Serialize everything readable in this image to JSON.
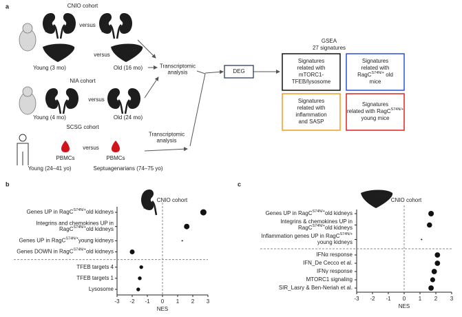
{
  "diagram": {
    "label": "a",
    "cnio": {
      "title": "CNIO cohort",
      "kidney": [
        "Kidney",
        "Kidney"
      ],
      "versus": [
        "versus",
        "versus"
      ],
      "liver": [
        "Liver",
        "Liver"
      ],
      "young": "Young (3 mo)",
      "old": "Old (16 mo)"
    },
    "nia": {
      "title": "NIA cohort",
      "kidney": "Kidney",
      "versus": "versus",
      "young": "Young (4 mo)",
      "old": "Old (24 mo)"
    },
    "scsg": {
      "title": "SCSG cohort",
      "pbmcs": [
        "PBMCs",
        "PBMCs"
      ],
      "versus": "versus",
      "young": "Young (24–41 yo)",
      "old": "Septuagenarians (74–75 yo)"
    },
    "analysis": [
      [
        "Transcriptomic",
        "analysis"
      ],
      [
        "Transcriptomic",
        "analysis"
      ]
    ],
    "deg": "DEG",
    "gsea": {
      "title": "GSEA",
      "subtitle": "27 signatures"
    },
    "boxes": [
      {
        "color": "#111111",
        "lines": [
          "Signatures",
          "related with",
          "mTORC1-",
          "TFEB/lysosome"
        ]
      },
      {
        "color": "#2a4fd6",
        "lines": [
          "Signatures",
          "related with",
          [
            "RagC",
            {
              "sup": "S74N/+"
            },
            " old"
          ],
          "mice"
        ]
      },
      {
        "color": "#f29a1f",
        "lines": [
          "Signatures",
          "related with",
          "inflammation",
          "and SASP"
        ]
      },
      {
        "color": "#e0201b",
        "lines": [
          "Signatures",
          [
            "related with RagC",
            {
              "sup": "S74N/+"
            }
          ],
          "young mice"
        ]
      }
    ]
  },
  "chart_data": [
    {
      "type": "dot",
      "label": "b",
      "title": "CNIO cohort",
      "icon_label": "Kidney",
      "xlabel": "NES",
      "xlim": [
        -3,
        3
      ],
      "xticks": [
        -3,
        -2,
        -1,
        0,
        1,
        2,
        3
      ],
      "groups": [
        {
          "categories": [
            [
              [
                "Genes UP in RagC",
                {
                  "sup": "S74N/+"
                },
                "old kidneys"
              ]
            ],
            [
              "Integrins and chemokines UP in",
              [
                "RagC",
                {
                  "sup": "S74N/+"
                },
                "old kidneys"
              ]
            ],
            [
              [
                "Genes UP in RagC",
                {
                  "sup": "S74N/+"
                },
                "young kidneys"
              ]
            ],
            [
              [
                "Genes DOWN in RagC",
                {
                  "sup": "S74N/+"
                },
                "old kidneys"
              ]
            ]
          ],
          "label_colors": [
            "#2a4fd6",
            "#2a4fd6",
            "#e0201b",
            "#2a4fd6"
          ],
          "values": [
            2.7,
            1.6,
            1.3,
            -2.0
          ],
          "sizes": [
            4.5,
            4,
            1,
            3.5
          ]
        },
        {
          "categories": [
            "TFEB targets 4",
            "TFEB targets 1",
            "Lysosome"
          ],
          "label_colors": [
            "#222222",
            "#222222",
            "#222222"
          ],
          "values": [
            -1.4,
            -1.5,
            -1.6
          ],
          "sizes": [
            2.7,
            2.7,
            2.7
          ]
        }
      ]
    },
    {
      "type": "dot",
      "label": "c",
      "title": "CNIO cohort",
      "icon_label": "Liver",
      "xlabel": "NES",
      "xlim": [
        -3,
        3
      ],
      "xticks": [
        -3,
        -2,
        -1,
        0,
        1,
        2,
        3
      ],
      "groups": [
        {
          "categories": [
            [
              [
                "Genes UP in RagC",
                {
                  "sup": "S74N/+"
                },
                "old kidneys"
              ]
            ],
            [
              "Integrins & chemokines UP in",
              [
                "RagC",
                {
                  "sup": "S74N/+"
                },
                "old kidneys"
              ]
            ],
            [
              [
                "Inflammation genes UP in RagC",
                {
                  "sup": "S74N/+"
                }
              ],
              "young kidneys"
            ]
          ],
          "label_colors": [
            "#2a4fd6",
            "#2a4fd6",
            "#e0201b"
          ],
          "values": [
            1.7,
            1.6,
            1.1
          ],
          "sizes": [
            4,
            3.8,
            1
          ]
        },
        {
          "categories": [
            "IFNα response",
            "IFN_De Cecco et al.",
            "IFNγ response",
            "MTORC1 signaling",
            "SIR_Lasry & Ben-Neriah et al."
          ],
          "label_colors": [
            "#f29a1f",
            "#f29a1f",
            "#f29a1f",
            "#222222",
            "#f29a1f"
          ],
          "values": [
            2.1,
            2.1,
            1.9,
            1.8,
            1.7
          ],
          "sizes": [
            3.9,
            3.9,
            3.9,
            3.6,
            3.9
          ]
        }
      ]
    }
  ]
}
